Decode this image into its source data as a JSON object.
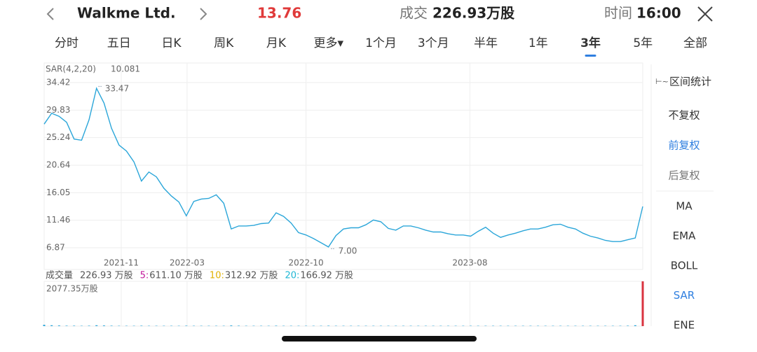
{
  "header": {
    "name": "Walkme Ltd.",
    "price": 13.76,
    "volume_label": "成交",
    "volume": "226.93万股",
    "time_label": "时间",
    "time": "16:00"
  },
  "tabs": [
    "分时",
    "五日",
    "日K",
    "周K",
    "月K",
    "更多▾",
    "1个月",
    "3个月",
    "半年",
    "1年",
    "3年",
    "5年",
    "全部"
  ],
  "active_tab": 10,
  "price_chart": {
    "type": "line",
    "indicator": "SAR(4,2,20)",
    "indicator_value": 10.081,
    "color": "#2ba6d9",
    "values": [
      27.5,
      29.3,
      28.8,
      27.8,
      25,
      24.8,
      28.2,
      33.47,
      31,
      26.8,
      24,
      23,
      21.2,
      18,
      19.5,
      18.7,
      16.8,
      15.5,
      14.5,
      12.2,
      14.6,
      15,
      15.1,
      15.7,
      14.3,
      10,
      10.5,
      10.5,
      10.6,
      10.9,
      11,
      12.7,
      12.1,
      11,
      9.4,
      9,
      8.4,
      7.7,
      7,
      8.9,
      10,
      10.2,
      10.2,
      10.7,
      11.5,
      11.2,
      10.1,
      9.8,
      10.5,
      10.5,
      10.2,
      9.8,
      9.5,
      9.5,
      9.2,
      9,
      9,
      8.8,
      9.6,
      10.3,
      9.3,
      8.6,
      9,
      9.3,
      9.7,
      10,
      10,
      10.3,
      10.7,
      10.8,
      10.3,
      10,
      9.3,
      8.8,
      8.5,
      8.1,
      7.9,
      7.9,
      8.2,
      8.5,
      13.76
    ],
    "xlim": [
      0,
      80
    ],
    "xticks": [
      {
        "value": 10.3,
        "label": "2021-11"
      },
      {
        "value": 19.1,
        "label": "2022-03"
      },
      {
        "value": 35,
        "label": "2022-10"
      },
      {
        "value": 56.9,
        "label": "2023-08"
      }
    ],
    "ylim": [
      5.24,
      37.69
    ],
    "yticks": [
      6.87,
      11.46,
      16.05,
      20.64,
      25.24,
      29.83,
      34.42
    ],
    "high": 33.47,
    "low": {
      "value": 7,
      "label": "7.00"
    }
  },
  "volume_chart": {
    "type": "bar",
    "max_label": "2077.35万股",
    "color": "#2ba6d9",
    "legend": [
      {
        "name": "成交量",
        "text": "226.93 万股",
        "color": "#555"
      },
      {
        "name": "5:",
        "text": "611.10 万股",
        "color": "#c2189b"
      },
      {
        "name": "10:",
        "text": "312.92 万股",
        "color": "#e0b000"
      },
      {
        "name": "20:",
        "text": "166.92 万股",
        "color": "#1fb7d4"
      }
    ],
    "values": [
      60,
      40,
      30,
      20,
      20,
      15,
      20,
      40,
      30,
      20,
      15,
      15,
      15,
      20,
      15,
      15,
      15,
      15,
      15,
      20,
      15,
      15,
      15,
      15,
      15,
      30,
      20,
      15,
      15,
      15,
      15,
      20,
      15,
      15,
      15,
      15,
      15,
      15,
      20,
      15,
      15,
      15,
      15,
      15,
      15,
      15,
      15,
      15,
      15,
      15,
      15,
      15,
      15,
      15,
      15,
      15,
      15,
      15,
      15,
      15,
      15,
      15,
      15,
      15,
      15,
      15,
      15,
      15,
      15,
      15,
      15,
      15,
      15,
      15,
      15,
      15,
      15,
      15,
      20,
      40,
      2077.35
    ],
    "ylim": [
      0,
      2077.35
    ]
  },
  "side_panel": {
    "title": "区间统计",
    "items": [
      "不复权",
      "前复权",
      "后复权",
      "MA",
      "EMA",
      "BOLL",
      "SAR",
      "ENE"
    ],
    "active": [
      1,
      6
    ],
    "muted": [
      2
    ]
  }
}
